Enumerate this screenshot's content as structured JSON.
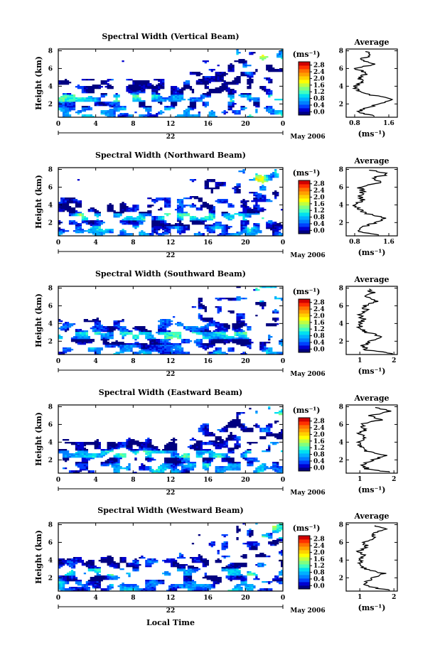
{
  "figure": {
    "date_label": "May 2006",
    "day_label": "22",
    "x_axis_label": "Local Time",
    "y_axis_label": "Height (km)",
    "units": "(ms⁻¹)",
    "average_title": "Average",
    "colorbar_ticks": [
      "2.8",
      "2.4",
      "2.0",
      "1.6",
      "1.2",
      "0.8",
      "0.4",
      "0.0"
    ],
    "colormap": [
      "#000080",
      "#0000d0",
      "#0040ff",
      "#0080ff",
      "#00b0ff",
      "#00e0f0",
      "#40ffc0",
      "#80ff80",
      "#c0ff40",
      "#ffff00",
      "#ffd000",
      "#ffa000",
      "#ff7000",
      "#ff3000",
      "#d00000"
    ]
  },
  "chart_data": [
    {
      "type": "heatmap",
      "title": "Spectral Width (Vertical Beam)",
      "x_ticks": [
        "0",
        "4",
        "8",
        "12",
        "16",
        "20",
        "0"
      ],
      "y_ticks": [
        "8",
        "6",
        "4",
        "2"
      ],
      "xlim": [
        0,
        24
      ],
      "ylim": [
        0.5,
        8.2
      ],
      "colorbar_ticks": [
        "2.8",
        "2.4",
        "2.0",
        "1.6",
        "1.2",
        "0.8",
        "0.4",
        "0.0"
      ],
      "average_profile": {
        "title": "Average",
        "x_ticks": [
          "0.8",
          "1.6"
        ],
        "xlim": [
          0.6,
          1.8
        ],
        "height_km": [
          0.6,
          1.0,
          1.5,
          2.0,
          2.5,
          3.0,
          3.5,
          4.0,
          4.5,
          5.0,
          5.5,
          6.0,
          6.5,
          7.0,
          7.5,
          8.0
        ],
        "values": [
          1.3,
          0.9,
          1.0,
          1.4,
          1.7,
          1.2,
          0.9,
          0.8,
          1.0,
          0.9,
          1.1,
          0.8,
          1.3,
          0.9,
          1.2,
          1.0
        ]
      }
    },
    {
      "type": "heatmap",
      "title": "Spectral Width (Northward Beam)",
      "x_ticks": [
        "0",
        "4",
        "8",
        "12",
        "16",
        "20",
        "0"
      ],
      "y_ticks": [
        "8",
        "6",
        "4",
        "2"
      ],
      "xlim": [
        0,
        24
      ],
      "ylim": [
        0.5,
        8.2
      ],
      "colorbar_ticks": [
        "2.8",
        "2.4",
        "2.0",
        "1.6",
        "1.2",
        "0.8",
        "0.4",
        "0.0"
      ],
      "average_profile": {
        "title": "Average",
        "x_ticks": [
          "0.8",
          "1.6"
        ],
        "xlim": [
          0.6,
          1.8
        ],
        "height_km": [
          0.6,
          1.0,
          1.5,
          2.0,
          2.5,
          3.0,
          3.5,
          4.0,
          4.5,
          5.0,
          5.5,
          6.0,
          6.5,
          7.0,
          7.5,
          8.0
        ],
        "values": [
          1.4,
          0.9,
          1.0,
          1.3,
          1.5,
          1.1,
          0.9,
          0.8,
          1.0,
          0.9,
          1.0,
          0.9,
          1.4,
          1.2,
          1.6,
          1.1
        ]
      }
    },
    {
      "type": "heatmap",
      "title": "Spectral Width (Southward Beam)",
      "x_ticks": [
        "0",
        "4",
        "8",
        "12",
        "16",
        "20",
        "0"
      ],
      "y_ticks": [
        "8",
        "6",
        "4",
        "2"
      ],
      "xlim": [
        0,
        24
      ],
      "ylim": [
        0.5,
        8.2
      ],
      "colorbar_ticks": [
        "2.8",
        "2.4",
        "2.0",
        "1.6",
        "1.2",
        "0.8",
        "0.4",
        "0.0"
      ],
      "average_profile": {
        "title": "Average",
        "x_ticks": [
          "1",
          "2"
        ],
        "xlim": [
          0.6,
          2.1
        ],
        "height_km": [
          0.6,
          1.0,
          1.5,
          2.0,
          2.5,
          3.0,
          3.5,
          4.0,
          4.5,
          5.0,
          5.5,
          6.0,
          6.5,
          7.0,
          7.5,
          8.0
        ],
        "values": [
          2.0,
          1.2,
          1.1,
          1.3,
          1.7,
          1.2,
          1.0,
          1.0,
          1.1,
          1.0,
          1.2,
          1.1,
          1.5,
          1.2,
          1.4,
          1.2
        ]
      }
    },
    {
      "type": "heatmap",
      "title": "Spectral Width (Eastward Beam)",
      "x_ticks": [
        "0",
        "4",
        "8",
        "12",
        "16",
        "20",
        "0"
      ],
      "y_ticks": [
        "8",
        "6",
        "4",
        "2"
      ],
      "xlim": [
        0,
        24
      ],
      "ylim": [
        0.5,
        8.2
      ],
      "colorbar_ticks": [
        "2.8",
        "2.4",
        "2.0",
        "1.6",
        "1.2",
        "0.8",
        "0.4",
        "0.0"
      ],
      "average_profile": {
        "title": "Average",
        "x_ticks": [
          "1",
          "2"
        ],
        "xlim": [
          0.6,
          2.1
        ],
        "height_km": [
          0.6,
          1.0,
          1.5,
          2.0,
          2.5,
          3.0,
          3.5,
          4.0,
          4.5,
          5.0,
          5.5,
          6.0,
          6.5,
          7.0,
          7.5,
          8.0
        ],
        "values": [
          1.9,
          1.2,
          1.1,
          1.4,
          1.8,
          1.2,
          1.0,
          1.0,
          1.1,
          1.0,
          1.2,
          1.0,
          1.6,
          1.3,
          1.9,
          1.4
        ]
      }
    },
    {
      "type": "heatmap",
      "title": "Spectral Width (Westward Beam)",
      "x_ticks": [
        "0",
        "4",
        "8",
        "12",
        "16",
        "20",
        "0"
      ],
      "y_ticks": [
        "8",
        "6",
        "4",
        "2"
      ],
      "xlim": [
        0,
        24
      ],
      "ylim": [
        0.5,
        8.2
      ],
      "colorbar_ticks": [
        "2.8",
        "2.4",
        "2.0",
        "1.6",
        "1.2",
        "0.8",
        "0.4",
        "0.0"
      ],
      "average_profile": {
        "title": "Average",
        "x_ticks": [
          "1",
          "2"
        ],
        "xlim": [
          0.6,
          2.1
        ],
        "height_km": [
          0.6,
          1.0,
          1.5,
          2.0,
          2.5,
          3.0,
          3.5,
          4.0,
          4.5,
          5.0,
          5.5,
          6.0,
          6.5,
          7.0,
          7.5,
          8.0
        ],
        "values": [
          1.9,
          1.2,
          1.2,
          1.4,
          1.7,
          1.2,
          1.0,
          1.0,
          1.1,
          1.0,
          1.2,
          1.1,
          1.5,
          1.3,
          1.8,
          1.3
        ]
      }
    }
  ]
}
